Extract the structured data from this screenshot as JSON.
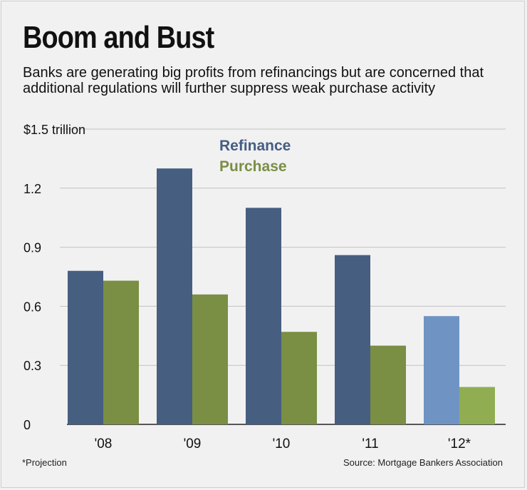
{
  "title": "Boom and Bust",
  "subtitle": "Banks are generating big profits from refinancings but are concerned that additional regulations will further suppress weak purchase activity",
  "footnote": "*Projection",
  "source": "Source: Mortgage Bankers Association",
  "colors": {
    "refinance": "#465e80",
    "purchase": "#7a8e44",
    "refinance_projection": "#6f94c4",
    "purchase_projection": "#90ad52",
    "grid": "#c2c2c4",
    "axis": "#222222"
  },
  "chart_data": {
    "type": "bar",
    "categories": [
      "'08",
      "'09",
      "'10",
      "'11",
      "'12*"
    ],
    "series": [
      {
        "name": "Refinance",
        "values": [
          0.78,
          1.3,
          1.1,
          0.86,
          0.55
        ]
      },
      {
        "name": "Purchase",
        "values": [
          0.73,
          0.66,
          0.47,
          0.4,
          0.19
        ]
      }
    ],
    "projected_categories": [
      "'12*"
    ],
    "ylim": [
      0,
      1.5
    ],
    "yticks": [
      {
        "value": 1.5,
        "label": "$1.5 trillion"
      },
      {
        "value": 1.2,
        "label": "1.2"
      },
      {
        "value": 0.9,
        "label": "0.9"
      },
      {
        "value": 0.6,
        "label": "0.6"
      },
      {
        "value": 0.3,
        "label": "0.3"
      },
      {
        "value": 0,
        "label": "0"
      }
    ],
    "legend": [
      {
        "label": "Refinance",
        "color": "#465e80"
      },
      {
        "label": "Purchase",
        "color": "#7a8e44"
      }
    ],
    "grid": true
  }
}
